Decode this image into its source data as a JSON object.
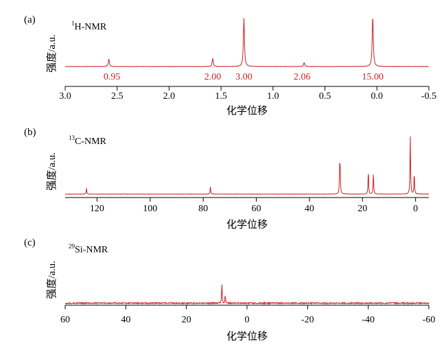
{
  "figure": {
    "colors": {
      "spectrum": "#cc1f1f",
      "axis": "#000000"
    }
  },
  "chart_data": [
    {
      "type": "line",
      "panel_letter": "(a)",
      "title_sup": "1",
      "title_main": "H-NMR",
      "xlabel": "化学位移",
      "ylabel": "强度/a.u.",
      "xlim": [
        3.0,
        -0.5
      ],
      "x_ticks": [
        3.0,
        2.5,
        2.0,
        1.5,
        1.0,
        0.5,
        0.0,
        -0.5
      ],
      "x_tick_labels": [
        "3.0",
        "2.5",
        "2.0",
        "1.5",
        "1.0",
        "0.5",
        "0.0",
        "-0.5"
      ],
      "peaks": [
        {
          "shift": 2.58,
          "height": 0.15
        },
        {
          "shift": 1.58,
          "height": 0.16
        },
        {
          "shift": 1.28,
          "height": 0.95
        },
        {
          "shift": 0.7,
          "height": 0.08
        },
        {
          "shift": 0.04,
          "height": 1.0
        }
      ],
      "integrals": [
        {
          "shift": 2.55,
          "label": "0.95"
        },
        {
          "shift": 1.58,
          "label": "2.00"
        },
        {
          "shift": 1.28,
          "label": "3.00"
        },
        {
          "shift": 0.72,
          "label": "2.06"
        },
        {
          "shift": 0.04,
          "label": "15.00"
        }
      ]
    },
    {
      "type": "line",
      "panel_letter": "(b)",
      "title_sup": "13",
      "title_main": "C-NMR",
      "xlabel": "化学位移",
      "ylabel": "强度/a.u.",
      "xlim": [
        132,
        -5
      ],
      "x_ticks": [
        120,
        100,
        80,
        60,
        40,
        20,
        0
      ],
      "x_tick_labels": [
        "120",
        "100",
        "80",
        "60",
        "40",
        "20",
        "0"
      ],
      "peaks": [
        {
          "shift": 124,
          "height": 0.1
        },
        {
          "shift": 77.3,
          "height": 0.13
        },
        {
          "shift": 28.6,
          "height": 0.42
        },
        {
          "shift": 28.4,
          "height": 0.4
        },
        {
          "shift": 17.8,
          "height": 0.4
        },
        {
          "shift": 15.9,
          "height": 0.36
        },
        {
          "shift": 2.0,
          "height": 1.0
        },
        {
          "shift": 0.5,
          "height": 0.36
        }
      ]
    },
    {
      "type": "line",
      "panel_letter": "(c)",
      "title_sup": "29",
      "title_main": "Si-NMR",
      "xlabel": "化学位移",
      "ylabel": "强度/a.u.",
      "xlim": [
        60,
        -60
      ],
      "x_ticks": [
        60,
        40,
        20,
        0,
        -20,
        -40,
        -60
      ],
      "x_tick_labels": [
        "60",
        "40",
        "20",
        "0",
        "-20",
        "-40",
        "-60"
      ],
      "peaks": [
        {
          "shift": 8.3,
          "height": 0.9
        },
        {
          "shift": 7.2,
          "height": 0.35
        }
      ]
    }
  ]
}
